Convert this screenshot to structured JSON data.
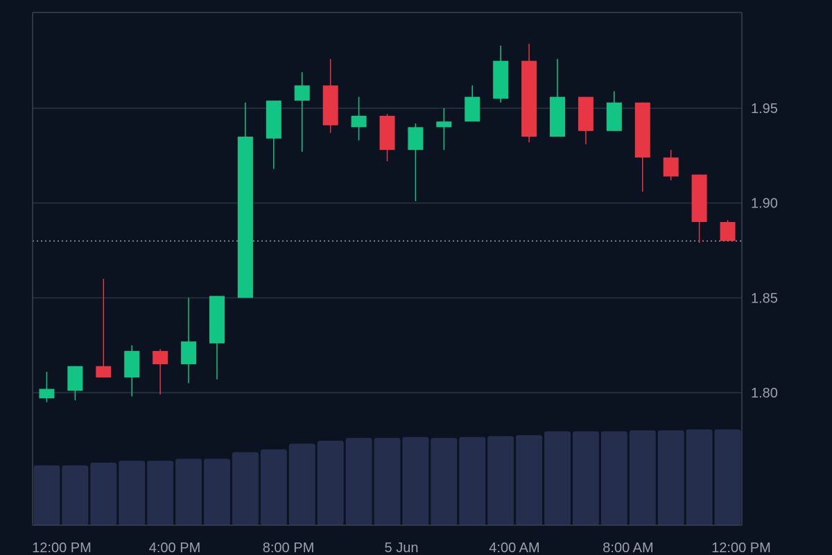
{
  "chart_data": {
    "type": "candlestick",
    "y_ticks": [
      1.8,
      1.85,
      1.9,
      1.95
    ],
    "y_tick_labels": [
      "1.80",
      "1.85",
      "1.90",
      "1.95"
    ],
    "ylim": [
      1.76,
      1.96
    ],
    "x_tick_labels": [
      "12:00 PM",
      "4:00 PM",
      "8:00 PM",
      "5 Jun",
      "4:00 AM",
      "8:00 AM",
      "12:00 PM"
    ],
    "last_price_line": 1.88,
    "grid": "horizontal",
    "candles": [
      {
        "open": 1.797,
        "high": 1.811,
        "low": 1.795,
        "close": 1.802
      },
      {
        "open": 1.801,
        "high": 1.814,
        "low": 1.796,
        "close": 1.814
      },
      {
        "open": 1.814,
        "high": 1.86,
        "low": 1.808,
        "close": 1.808
      },
      {
        "open": 1.808,
        "high": 1.825,
        "low": 1.798,
        "close": 1.822
      },
      {
        "open": 1.822,
        "high": 1.823,
        "low": 1.799,
        "close": 1.815
      },
      {
        "open": 1.815,
        "high": 1.85,
        "low": 1.805,
        "close": 1.827
      },
      {
        "open": 1.826,
        "high": 1.851,
        "low": 1.807,
        "close": 1.851
      },
      {
        "open": 1.85,
        "high": 1.953,
        "low": 1.85,
        "close": 1.935
      },
      {
        "open": 1.934,
        "high": 1.954,
        "low": 1.918,
        "close": 1.954
      },
      {
        "open": 1.954,
        "high": 1.969,
        "low": 1.927,
        "close": 1.962
      },
      {
        "open": 1.962,
        "high": 1.976,
        "low": 1.937,
        "close": 1.941
      },
      {
        "open": 1.94,
        "high": 1.956,
        "low": 1.933,
        "close": 1.946
      },
      {
        "open": 1.946,
        "high": 1.947,
        "low": 1.922,
        "close": 1.928
      },
      {
        "open": 1.928,
        "high": 1.942,
        "low": 1.901,
        "close": 1.94
      },
      {
        "open": 1.94,
        "high": 1.95,
        "low": 1.928,
        "close": 1.943
      },
      {
        "open": 1.943,
        "high": 1.962,
        "low": 1.943,
        "close": 1.956
      },
      {
        "open": 1.955,
        "high": 1.983,
        "low": 1.953,
        "close": 1.975
      },
      {
        "open": 1.975,
        "high": 1.984,
        "low": 1.932,
        "close": 1.935
      },
      {
        "open": 1.935,
        "high": 1.976,
        "low": 1.935,
        "close": 1.956
      },
      {
        "open": 1.956,
        "high": 1.956,
        "low": 1.931,
        "close": 1.938
      },
      {
        "open": 1.938,
        "high": 1.959,
        "low": 1.938,
        "close": 1.953
      },
      {
        "open": 1.953,
        "high": 1.953,
        "low": 1.906,
        "close": 1.924
      },
      {
        "open": 1.924,
        "high": 1.928,
        "low": 1.912,
        "close": 1.914
      },
      {
        "open": 1.915,
        "high": 1.915,
        "low": 1.879,
        "close": 1.89
      },
      {
        "open": 1.89,
        "high": 1.891,
        "low": 1.88,
        "close": 1.88
      }
    ],
    "volume": [
      0.63,
      0.63,
      0.66,
      0.68,
      0.68,
      0.7,
      0.7,
      0.77,
      0.8,
      0.86,
      0.89,
      0.92,
      0.92,
      0.93,
      0.92,
      0.93,
      0.94,
      0.95,
      0.99,
      0.99,
      0.99,
      1.0,
      1.0,
      1.01,
      1.01
    ],
    "colors": {
      "up": "#13c584",
      "down": "#e83744",
      "volume": "#252f4d",
      "grid": "#2b3446",
      "axis": "#3a4252",
      "background": "#0b1220",
      "label": "#9aa0ad"
    }
  }
}
